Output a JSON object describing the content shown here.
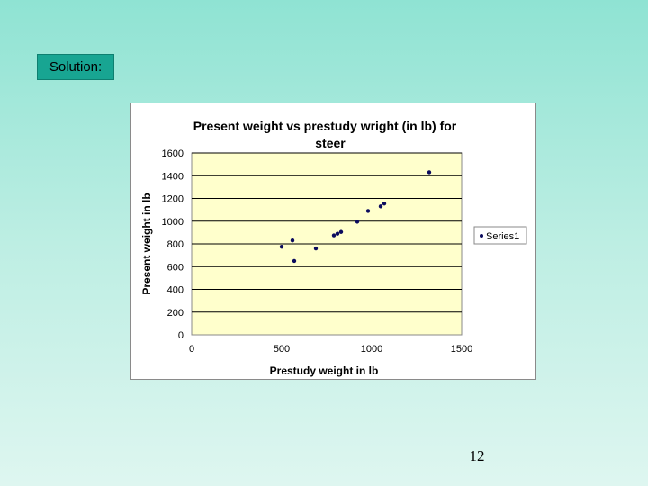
{
  "slide": {
    "label": "Solution:",
    "page_number": "12"
  },
  "colors": {
    "plot_background": "#ffffcc",
    "marker": "#0b0b5e",
    "label_box": "#18a592"
  },
  "chart_data": {
    "type": "scatter",
    "title_lines": [
      "Present weight vs prestudy wright (in lb) for",
      "steer"
    ],
    "xlabel": "Prestudy weight in lb",
    "ylabel": "Present weight in lb",
    "xlim": [
      0,
      1500
    ],
    "ylim": [
      0,
      1600
    ],
    "x_ticks": [
      "0",
      "500",
      "1000",
      "1500"
    ],
    "y_ticks": [
      "0",
      "200",
      "400",
      "600",
      "800",
      "1000",
      "1200",
      "1400",
      "1600"
    ],
    "grid": "horizontal",
    "legend_position": "right",
    "series": [
      {
        "name": "Series1",
        "points": [
          [
            500,
            775
          ],
          [
            560,
            830
          ],
          [
            570,
            650
          ],
          [
            690,
            760
          ],
          [
            790,
            875
          ],
          [
            810,
            890
          ],
          [
            830,
            905
          ],
          [
            920,
            995
          ],
          [
            980,
            1090
          ],
          [
            1050,
            1130
          ],
          [
            1070,
            1155
          ],
          [
            1320,
            1430
          ]
        ]
      }
    ]
  }
}
